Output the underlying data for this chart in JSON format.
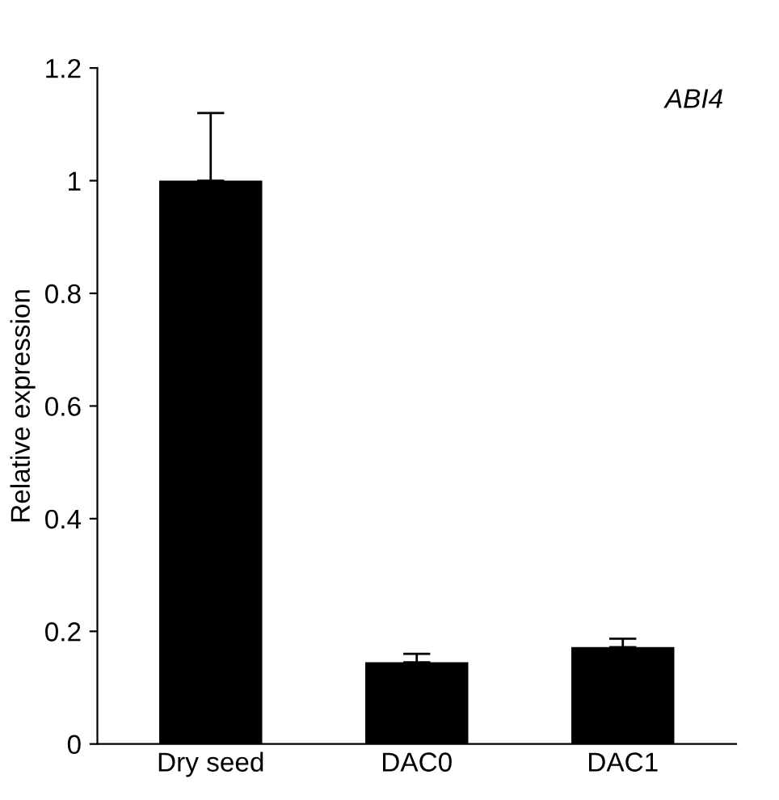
{
  "chart_data": {
    "type": "bar",
    "title": "ABI4",
    "ylabel": "Relative expression",
    "categories": [
      "Dry seed",
      "DAC0",
      "DAC1"
    ],
    "values": [
      1.0,
      0.145,
      0.172
    ],
    "errors": [
      [
        1.0,
        1.12
      ],
      [
        0.145,
        0.16
      ],
      [
        0.172,
        0.187
      ]
    ],
    "color": "#000000",
    "ylim": [
      0,
      1.2
    ],
    "yticks": [
      0,
      0.2,
      0.4,
      0.6,
      0.8,
      1,
      1.2
    ],
    "grid": false
  }
}
